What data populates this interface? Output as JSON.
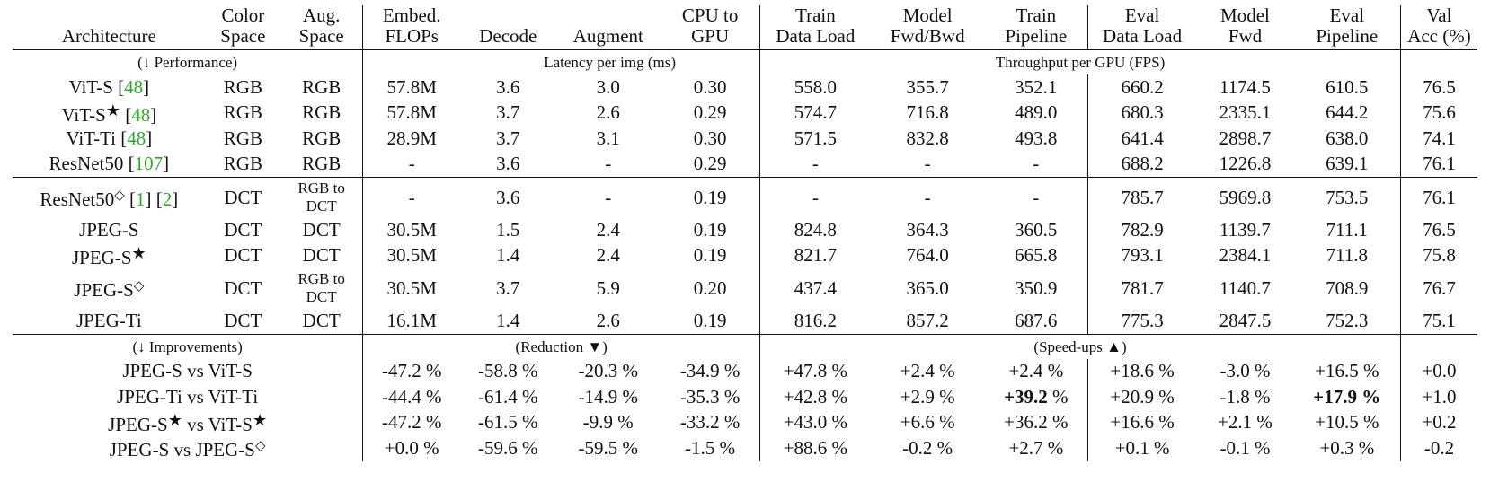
{
  "header": {
    "architecture": "Architecture",
    "color_space": [
      "Color",
      "Space"
    ],
    "aug_space": [
      "Aug.",
      "Space"
    ],
    "embed_flops": [
      "Embed.",
      "FLOPs"
    ],
    "decode": "Decode",
    "augment": "Augment",
    "cpu_to_gpu": [
      "CPU to",
      "GPU"
    ],
    "train_data_load": [
      "Train",
      "Data Load"
    ],
    "model_fwd_bwd": [
      "Model",
      "Fwd/Bwd"
    ],
    "train_pipeline": [
      "Train",
      "Pipeline"
    ],
    "eval_data_load": [
      "Eval",
      "Data Load"
    ],
    "model_fwd": [
      "Model",
      "Fwd"
    ],
    "eval_pipeline": [
      "Eval",
      "Pipeline"
    ],
    "val_acc": [
      "Val",
      "Acc (%)"
    ]
  },
  "perf_section": {
    "label": "(↓ Performance)",
    "latency": "Latency per img (ms)",
    "throughput": "Throughput per GPU (FPS)"
  },
  "group1": [
    {
      "name": "ViT-S",
      "mark": "",
      "cite": [
        "48"
      ],
      "color": "RGB",
      "aug": "RGB",
      "flops": "57.8M",
      "decode": "3.6",
      "augment": "3.0",
      "cpu": "0.30",
      "tdl": "558.0",
      "fb": "355.7",
      "tp": "352.1",
      "edl": "660.2",
      "fwd": "1174.5",
      "ep": "610.5",
      "acc": "76.5"
    },
    {
      "name": "ViT-S",
      "mark": "★",
      "cite": [
        "48"
      ],
      "color": "RGB",
      "aug": "RGB",
      "flops": "57.8M",
      "decode": "3.7",
      "augment": "2.6",
      "cpu": "0.29",
      "tdl": "574.7",
      "fb": "716.8",
      "tp": "489.0",
      "edl": "680.3",
      "fwd": "2335.1",
      "ep": "644.2",
      "acc": "75.6"
    },
    {
      "name": "ViT-Ti",
      "mark": "",
      "cite": [
        "48"
      ],
      "color": "RGB",
      "aug": "RGB",
      "flops": "28.9M",
      "decode": "3.7",
      "augment": "3.1",
      "cpu": "0.30",
      "tdl": "571.5",
      "fb": "832.8",
      "tp": "493.8",
      "edl": "641.4",
      "fwd": "2898.7",
      "ep": "638.0",
      "acc": "74.1"
    },
    {
      "name": "ResNet50",
      "mark": "",
      "cite": [
        "107"
      ],
      "color": "RGB",
      "aug": "RGB",
      "flops": "-",
      "decode": "3.6",
      "augment": "-",
      "cpu": "0.29",
      "tdl": "-",
      "fb": "-",
      "tp": "-",
      "edl": "688.2",
      "fwd": "1226.8",
      "ep": "639.1",
      "acc": "76.1"
    }
  ],
  "group2": [
    {
      "name": "ResNet50",
      "mark": "◇",
      "cite": [
        "1",
        "2"
      ],
      "color": "DCT",
      "aug": [
        "RGB to",
        "DCT"
      ],
      "flops": "-",
      "decode": "3.6",
      "augment": "-",
      "cpu": "0.19",
      "tdl": "-",
      "fb": "-",
      "tp": "-",
      "edl": "785.7",
      "fwd": "5969.8",
      "ep": "753.5",
      "acc": "76.1"
    },
    {
      "name": "JPEG-S",
      "mark": "",
      "cite": [],
      "color": "DCT",
      "aug": "DCT",
      "flops": "30.5M",
      "decode": "1.5",
      "augment": "2.4",
      "cpu": "0.19",
      "tdl": "824.8",
      "fb": "364.3",
      "tp": "360.5",
      "edl": "782.9",
      "fwd": "1139.7",
      "ep": "711.1",
      "acc": "76.5"
    },
    {
      "name": "JPEG-S",
      "mark": "★",
      "cite": [],
      "color": "DCT",
      "aug": "DCT",
      "flops": "30.5M",
      "decode": "1.4",
      "augment": "2.4",
      "cpu": "0.19",
      "tdl": "821.7",
      "fb": "764.0",
      "tp": "665.8",
      "edl": "793.1",
      "fwd": "2384.1",
      "ep": "711.8",
      "acc": "75.8"
    },
    {
      "name": "JPEG-S",
      "mark": "◇",
      "cite": [],
      "color": "DCT",
      "aug": [
        "RGB to",
        "DCT"
      ],
      "flops": "30.5M",
      "decode": "3.7",
      "augment": "5.9",
      "cpu": "0.20",
      "tdl": "437.4",
      "fb": "365.0",
      "tp": "350.9",
      "edl": "781.7",
      "fwd": "1140.7",
      "ep": "708.9",
      "acc": "76.7"
    },
    {
      "name": "JPEG-Ti",
      "mark": "",
      "cite": [],
      "color": "DCT",
      "aug": "DCT",
      "flops": "16.1M",
      "decode": "1.4",
      "augment": "2.6",
      "cpu": "0.19",
      "tdl": "816.2",
      "fb": "857.2",
      "tp": "687.6",
      "edl": "775.3",
      "fwd": "2847.5",
      "ep": "752.3",
      "acc": "75.1"
    }
  ],
  "improve_section": {
    "label": "(↓ Improvements)",
    "reduction": "(Reduction ▼)",
    "speedups": "(Speed-ups ▲)"
  },
  "group3": [
    {
      "a": "JPEG-S",
      "a_mark": "",
      "b": "ViT-S",
      "b_mark": "",
      "flops": "-47.2 %",
      "decode": "-58.8 %",
      "augment": "-20.3 %",
      "cpu": "-34.9 %",
      "tdl": "+47.8 %",
      "fb": "+2.4 %",
      "tp": "+2.4 %",
      "tp_bold": false,
      "edl": "+18.6 %",
      "fwd": "-3.0 %",
      "ep": "+16.5 %",
      "ep_bold": false,
      "acc": "+0.0"
    },
    {
      "a": "JPEG-Ti",
      "a_mark": "",
      "b": "ViT-Ti",
      "b_mark": "",
      "flops": "-44.4 %",
      "decode": "-61.4 %",
      "augment": "-14.9 %",
      "cpu": "-35.3 %",
      "tdl": "+42.8 %",
      "fb": "+2.9 %",
      "tp": "+39.2",
      "tp_bold": true,
      "edl": "+20.9 %",
      "fwd": "-1.8 %",
      "ep": "+17.9 %",
      "ep_bold": true,
      "acc": "+1.0"
    },
    {
      "a": "JPEG-S",
      "a_mark": "★",
      "b": "ViT-S",
      "b_mark": "★",
      "flops": "-47.2 %",
      "decode": "-61.5 %",
      "augment": "-9.9 %",
      "cpu": "-33.2 %",
      "tdl": "+43.0 %",
      "fb": "+6.6 %",
      "tp": "+36.2 %",
      "tp_bold": false,
      "edl": "+16.6 %",
      "fwd": "+2.1 %",
      "ep": "+10.5 %",
      "ep_bold": false,
      "acc": "+0.2"
    },
    {
      "a": "JPEG-S",
      "a_mark": "",
      "b": "JPEG-S",
      "b_mark": "◇",
      "flops": "+0.0 %",
      "decode": "-59.6 %",
      "augment": "-59.5 %",
      "cpu": "-1.5 %",
      "tdl": "+88.6 %",
      "fb": "-0.2 %",
      "tp": "+2.7 %",
      "tp_bold": false,
      "edl": "+0.1 %",
      "fwd": "-0.1 %",
      "ep": "+0.3 %",
      "ep_bold": false,
      "acc": "-0.2"
    }
  ]
}
